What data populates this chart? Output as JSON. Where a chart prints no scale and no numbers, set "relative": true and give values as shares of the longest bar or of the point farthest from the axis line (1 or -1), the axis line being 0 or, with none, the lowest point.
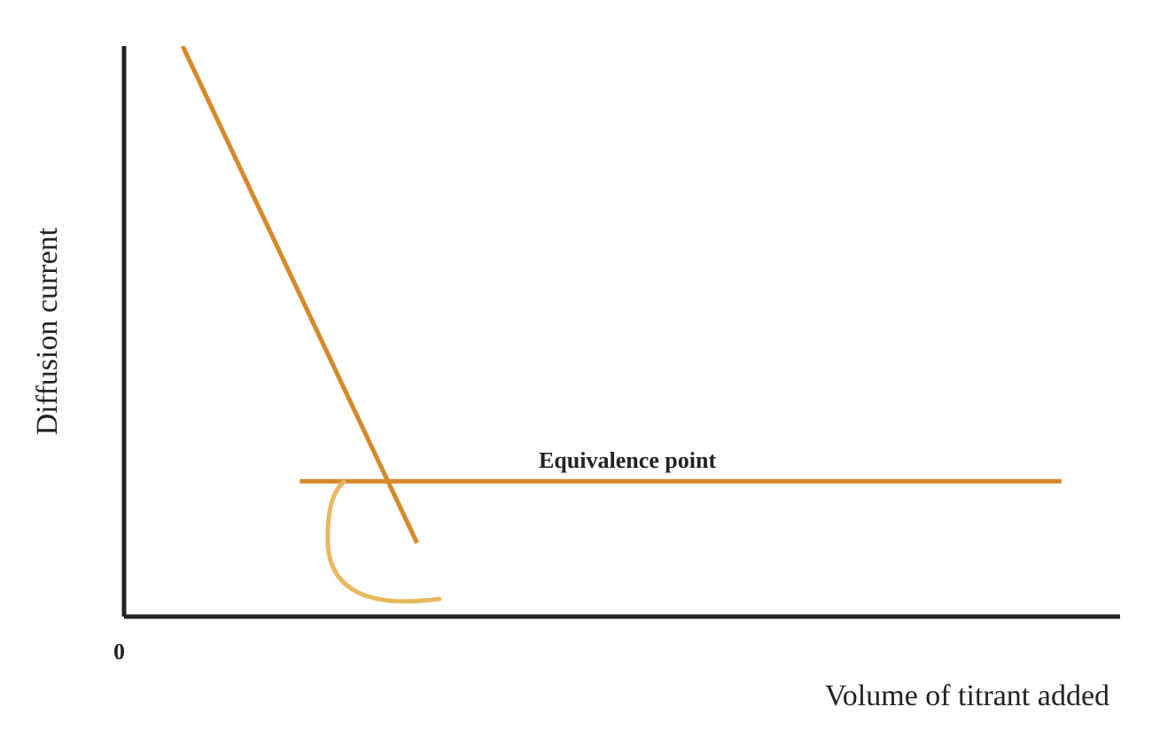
{
  "chart_data": {
    "type": "line",
    "relative": true,
    "xlabel": "Volume of titrant added",
    "ylabel": "Diffusion current",
    "categories": [
      null,
      null,
      null,
      null,
      null,
      null,
      null,
      null,
      null,
      null,
      null,
      null,
      null,
      null,
      null,
      null,
      null,
      null,
      null,
      null,
      null,
      null,
      null,
      null,
      null,
      null,
      null,
      null,
      null,
      null,
      null,
      null,
      null,
      null,
      null
    ],
    "series": [
      {
        "color": "#d4892a",
        "values": [
          null,
          null,
          1,
          null,
          null,
          null,
          null,
          null,
          null,
          null,
          0.129,
          null,
          null,
          null,
          null,
          null,
          null,
          null,
          null,
          null,
          null,
          null,
          null,
          null,
          null,
          null,
          null,
          null,
          null,
          null,
          null,
          null,
          null,
          null,
          null
        ]
      },
      {
        "color": "#d4892a",
        "values": [
          null,
          null,
          null,
          null,
          null,
          null,
          0.237,
          null,
          null,
          null,
          null,
          null,
          null,
          null,
          null,
          null,
          null,
          null,
          null,
          null,
          null,
          null,
          null,
          null,
          null,
          null,
          null,
          null,
          null,
          null,
          null,
          null,
          0.237,
          null,
          null
        ]
      }
    ],
    "annotations": [
      "0",
      "Equivalence point"
    ],
    "marker": "none",
    "line_style": "solid"
  }
}
